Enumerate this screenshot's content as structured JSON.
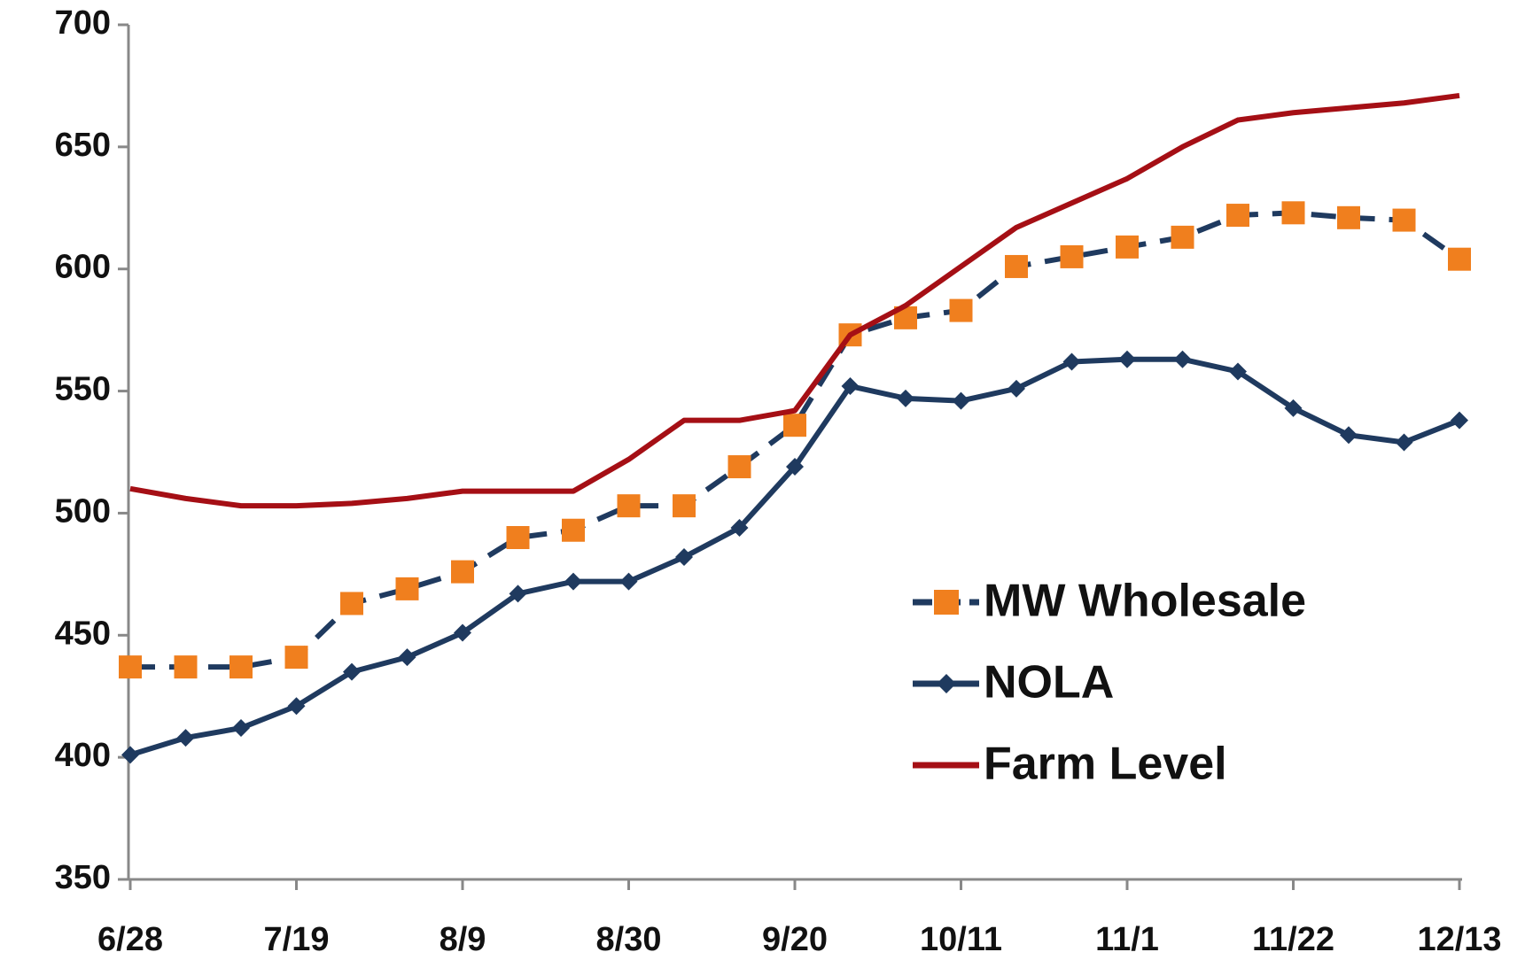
{
  "chart_data": {
    "type": "line",
    "categories": [
      "6/28",
      null,
      null,
      "7/19",
      null,
      null,
      "8/9",
      null,
      null,
      "8/30",
      null,
      null,
      "9/20",
      null,
      null,
      "10/11",
      null,
      null,
      "11/1",
      null,
      null,
      "11/22",
      null,
      null,
      "12/13"
    ],
    "series": [
      {
        "name": "MW Wholesale",
        "color": "#1f3a5f",
        "marker_color": "#f07f1e",
        "values": [
          437,
          437,
          437,
          441,
          463,
          469,
          476,
          490,
          493,
          503,
          503,
          519,
          536,
          573,
          580,
          583,
          601,
          605,
          609,
          613,
          622,
          623,
          621,
          620,
          604
        ]
      },
      {
        "name": "NOLA",
        "color": "#1f3a5f",
        "values": [
          401,
          408,
          412,
          421,
          435,
          441,
          451,
          467,
          472,
          472,
          482,
          494,
          519,
          552,
          547,
          546,
          551,
          562,
          563,
          563,
          558,
          543,
          532,
          529,
          538
        ]
      },
      {
        "name": "Farm Level",
        "color": "#a50f15",
        "values": [
          510,
          506,
          503,
          503,
          504,
          506,
          509,
          509,
          509,
          522,
          538,
          538,
          542,
          573,
          585,
          601,
          617,
          627,
          637,
          650,
          661,
          664,
          666,
          668,
          671
        ]
      }
    ],
    "ylim": [
      350,
      700
    ],
    "yticks": [
      350,
      400,
      450,
      500,
      550,
      600,
      650,
      700
    ],
    "legend": "lower right"
  }
}
